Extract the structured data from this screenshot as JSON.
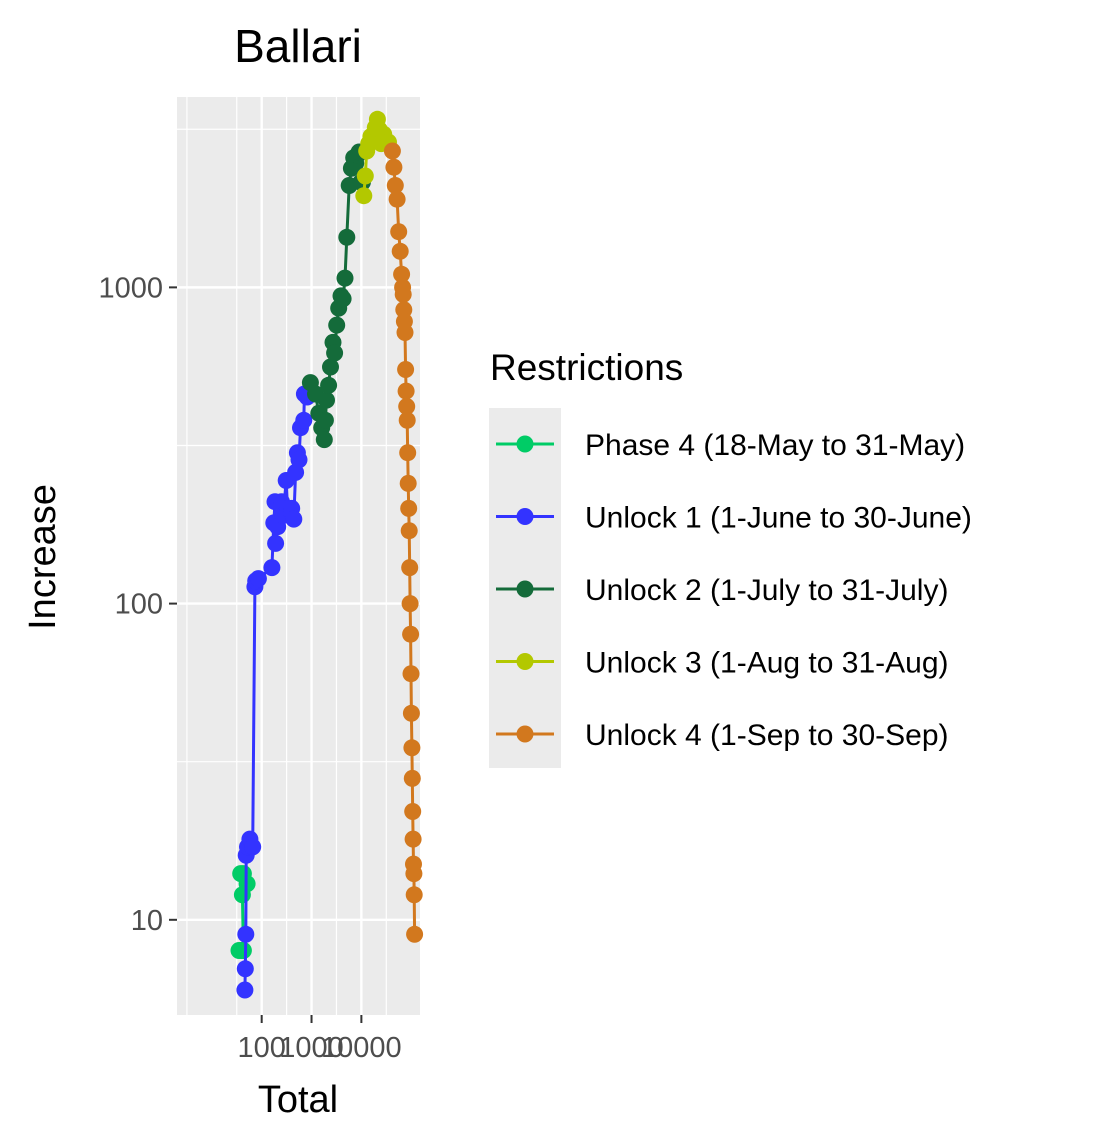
{
  "chart_data": {
    "type": "line",
    "title": "Ballari",
    "xlabel": "Total",
    "ylabel": "Increase",
    "x_scale": "log10",
    "y_scale": "log10",
    "xlim": [
      2,
      150000
    ],
    "ylim": [
      5,
      4000
    ],
    "x_ticks": [
      {
        "value": 100,
        "label": "100"
      },
      {
        "value": 1000,
        "label": "1000"
      },
      {
        "value": 10000,
        "label": "10000"
      }
    ],
    "y_ticks": [
      {
        "value": 10,
        "label": "10"
      },
      {
        "value": 100,
        "label": "100"
      },
      {
        "value": 1000,
        "label": "1000"
      }
    ],
    "grid": true,
    "panel_background": "#ebebeb",
    "legend": {
      "title": "Restrictions",
      "position": "right"
    },
    "series": [
      {
        "name": "Phase 4 (18-May to 31-May)",
        "color": "#00cc66",
        "points": [
          [
            35,
            8
          ],
          [
            39,
            8
          ],
          [
            43,
            8
          ],
          [
            41,
            12
          ],
          [
            38,
            14
          ],
          [
            43,
            14
          ],
          [
            51,
            13
          ]
        ]
      },
      {
        "name": "Unlock 1 (1-June to 30-June)",
        "color": "#3333ff",
        "points": [
          [
            46,
            6
          ],
          [
            47,
            7
          ],
          [
            48,
            9
          ],
          [
            49,
            16
          ],
          [
            52,
            17
          ],
          [
            58,
            18
          ],
          [
            66,
            17
          ],
          [
            73,
            113
          ],
          [
            76,
            118
          ],
          [
            86,
            120
          ],
          [
            160,
            130
          ],
          [
            175,
            180
          ],
          [
            185,
            210
          ],
          [
            190,
            155
          ],
          [
            210,
            175
          ],
          [
            250,
            210
          ],
          [
            270,
            190
          ],
          [
            310,
            245
          ],
          [
            330,
            200
          ],
          [
            400,
            200
          ],
          [
            440,
            185
          ],
          [
            480,
            260
          ],
          [
            520,
            300
          ],
          [
            560,
            285
          ],
          [
            600,
            360
          ],
          [
            700,
            380
          ],
          [
            720,
            460
          ],
          [
            820,
            450
          ]
        ]
      },
      {
        "name": "Unlock 2 (1-July to 31-July)",
        "color": "#146b3a",
        "points": [
          [
            950,
            500
          ],
          [
            1200,
            460
          ],
          [
            1400,
            400
          ],
          [
            1600,
            360
          ],
          [
            1800,
            330
          ],
          [
            1900,
            380
          ],
          [
            2000,
            440
          ],
          [
            2200,
            490
          ],
          [
            2400,
            560
          ],
          [
            2700,
            670
          ],
          [
            2900,
            620
          ],
          [
            3200,
            760
          ],
          [
            3500,
            860
          ],
          [
            3900,
            940
          ],
          [
            4300,
            920
          ],
          [
            4700,
            1070
          ],
          [
            5100,
            1440
          ],
          [
            5700,
            2100
          ],
          [
            6300,
            2380
          ],
          [
            7000,
            2570
          ],
          [
            7700,
            2470
          ],
          [
            8300,
            2620
          ],
          [
            9000,
            2680
          ],
          [
            9800,
            2150
          ],
          [
            10500,
            2150
          ]
        ]
      },
      {
        "name": "Unlock 3 (1-Aug to 31-Aug)",
        "color": "#b3c800",
        "points": [
          [
            11200,
            1950
          ],
          [
            12000,
            2250
          ],
          [
            12800,
            2700
          ],
          [
            14000,
            2850
          ],
          [
            15500,
            3000
          ],
          [
            17000,
            2950
          ],
          [
            19000,
            3200
          ],
          [
            21000,
            3400
          ],
          [
            23000,
            3150
          ],
          [
            25000,
            2850
          ],
          [
            28000,
            3050
          ],
          [
            31000,
            2900
          ],
          [
            35000,
            2880
          ]
        ]
      },
      {
        "name": "Unlock 4 (1-Sep to 30-Sep)",
        "color": "#d2781e",
        "points": [
          [
            42000,
            2700
          ],
          [
            45000,
            2400
          ],
          [
            48000,
            2100
          ],
          [
            52000,
            1900
          ],
          [
            56000,
            1500
          ],
          [
            60000,
            1300
          ],
          [
            64000,
            1100
          ],
          [
            67000,
            1000
          ],
          [
            69000,
            950
          ],
          [
            71000,
            850
          ],
          [
            73000,
            780
          ],
          [
            75000,
            720
          ],
          [
            77000,
            550
          ],
          [
            79000,
            470
          ],
          [
            81000,
            420
          ],
          [
            83000,
            380
          ],
          [
            85000,
            300
          ],
          [
            87000,
            240
          ],
          [
            89000,
            200
          ],
          [
            91000,
            170
          ],
          [
            93000,
            130
          ],
          [
            95000,
            100
          ],
          [
            97000,
            80
          ],
          [
            99000,
            60
          ],
          [
            101000,
            45
          ],
          [
            103000,
            35
          ],
          [
            105000,
            28
          ],
          [
            107000,
            22
          ],
          [
            109000,
            18
          ],
          [
            111000,
            15
          ],
          [
            113000,
            14
          ],
          [
            115000,
            12
          ],
          [
            117000,
            9
          ]
        ]
      }
    ]
  }
}
